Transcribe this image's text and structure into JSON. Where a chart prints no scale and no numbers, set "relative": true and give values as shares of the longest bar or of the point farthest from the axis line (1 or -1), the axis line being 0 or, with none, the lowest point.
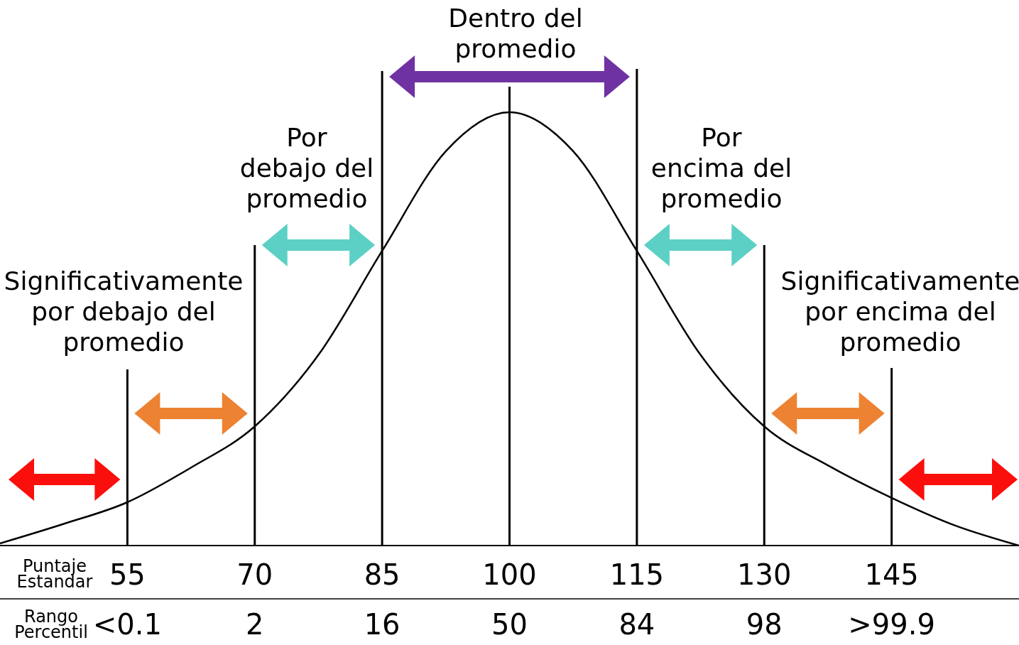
{
  "chart_data": {
    "type": "line",
    "relative": true,
    "xlabel": "Puntaje\nEstandar",
    "x2label": "Rango\nPercentil",
    "xlim": [
      40,
      160
    ],
    "xticks": [
      55,
      70,
      85,
      100,
      115,
      130,
      145
    ],
    "series": [
      {
        "color": "#000000",
        "x": [
          40,
          47.5,
          55,
          62.5,
          70,
          77.5,
          85,
          92.5,
          100,
          107.5,
          115,
          122.5,
          130,
          137.5,
          145,
          152.5,
          160
        ],
        "values": [
          0.005,
          0.05,
          0.1,
          0.18,
          0.275,
          0.44,
          0.68,
          0.91,
          1,
          0.91,
          0.68,
          0.44,
          0.275,
          0.185,
          0.11,
          0.046,
          0
        ]
      }
    ],
    "ref_lines": [
      {
        "axis": "x",
        "value": 55,
        "color": "#000000"
      },
      {
        "axis": "x",
        "value": 70,
        "color": "#000000"
      },
      {
        "axis": "x",
        "value": 85,
        "color": "#000000"
      },
      {
        "axis": "x",
        "value": 100,
        "color": "#000000"
      },
      {
        "axis": "x",
        "value": 115,
        "color": "#000000"
      },
      {
        "axis": "x",
        "value": 130,
        "color": "#000000"
      },
      {
        "axis": "x",
        "value": 145,
        "color": "#000000"
      }
    ],
    "annotations": [
      "Dentro del\npromedio",
      "Por\ndebajo del\npromedio",
      "Por\nencima del\npromedio",
      "Significativamente\npor debajo del\npromedio",
      "Significativamente\npor encima del\npromedio",
      "<0.1",
      "2",
      "16",
      "50",
      "84",
      "98",
      ">99.9"
    ],
    "line_style": "solid",
    "marker": "none"
  }
}
